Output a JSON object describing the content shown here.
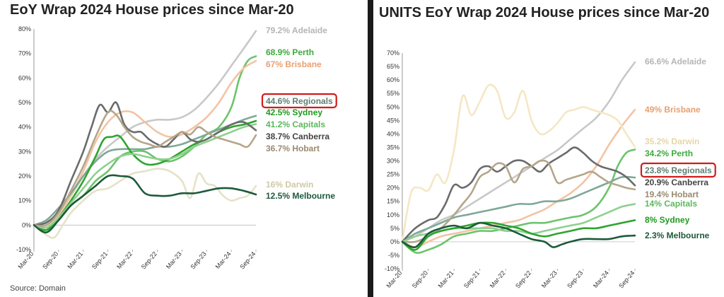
{
  "chart_data": [
    {
      "type": "line",
      "title": "EoY Wrap 2024 House prices since Mar-20",
      "source": "Source: Domain",
      "x_ticks": [
        "Mar-20",
        "Sep-20",
        "Mar-21",
        "Sep-21",
        "Mar-22",
        "Sep-22",
        "Mar-23",
        "Sep-23",
        "Mar-24",
        "Sep-24"
      ],
      "y_ticks": [
        "-10%",
        "0%",
        "10%",
        "20%",
        "30%",
        "40%",
        "50%",
        "60%",
        "70%",
        "80%"
      ],
      "ylim": [
        -10,
        80
      ],
      "xlim": [
        0,
        54
      ],
      "grid": false,
      "legend": "end-labels",
      "series": [
        {
          "name": "Adelaide",
          "label": "79.2% Adelaide",
          "color": "#c8c8c8",
          "label_color": "#b5b5b5",
          "x": [
            0,
            3,
            6,
            9,
            12,
            15,
            18,
            21,
            24,
            27,
            30,
            33,
            36,
            39,
            42,
            45,
            48,
            51,
            54
          ],
          "y": [
            0,
            1,
            5,
            12,
            20,
            27,
            32,
            36,
            40,
            42,
            43,
            43,
            44,
            47,
            52,
            58,
            65,
            72,
            79.2
          ]
        },
        {
          "name": "Perth",
          "label": "68.9% Perth",
          "color": "#6cc46c",
          "label_color": "#3daa3d",
          "x": [
            0,
            3,
            6,
            9,
            12,
            15,
            18,
            21,
            24,
            27,
            30,
            33,
            36,
            39,
            42,
            45,
            48,
            50,
            52,
            54
          ],
          "y": [
            0,
            -2,
            2,
            8,
            12,
            18,
            22,
            28,
            30,
            30,
            27,
            26,
            28,
            32,
            37,
            40,
            48,
            60,
            67,
            68.9
          ]
        },
        {
          "name": "Brisbane",
          "label": "67% Brisbane",
          "color": "#f2c4a4",
          "label_color": "#e8a070",
          "x": [
            0,
            3,
            6,
            9,
            12,
            15,
            18,
            21,
            24,
            27,
            30,
            33,
            36,
            39,
            42,
            45,
            48,
            51,
            54
          ],
          "y": [
            0,
            -1,
            4,
            12,
            22,
            34,
            42,
            46,
            46,
            42,
            38,
            36,
            37,
            40,
            44,
            50,
            58,
            64,
            67
          ]
        },
        {
          "name": "Regionals",
          "label": "44.6% Regionals",
          "color": "#7fa897",
          "label_color": "#5f7f72",
          "x": [
            0,
            3,
            6,
            9,
            12,
            15,
            18,
            21,
            24,
            27,
            30,
            33,
            36,
            39,
            42,
            45,
            48,
            51,
            54
          ],
          "y": [
            0,
            2,
            7,
            13,
            20,
            26,
            30,
            31,
            31,
            31,
            32,
            32,
            33,
            35,
            37,
            39,
            41,
            43,
            44.6
          ]
        },
        {
          "name": "Sydney",
          "label": "42.5% Sydney",
          "color": "#2ea52e",
          "label_color": "#1f9a1f",
          "x": [
            0,
            3,
            6,
            9,
            12,
            15,
            17,
            19,
            21,
            24,
            27,
            30,
            33,
            36,
            39,
            42,
            45,
            48,
            51,
            54
          ],
          "y": [
            0,
            -2,
            3,
            10,
            18,
            28,
            35,
            36,
            36,
            29,
            25,
            25,
            27,
            30,
            33,
            35,
            38,
            40,
            41,
            42.5
          ]
        },
        {
          "name": "Capitals",
          "label": "41.2% Capitals",
          "color": "#8fd08f",
          "label_color": "#5cb85c",
          "x": [
            0,
            3,
            6,
            9,
            12,
            15,
            18,
            21,
            24,
            27,
            30,
            33,
            36,
            39,
            42,
            45,
            48,
            51,
            54
          ],
          "y": [
            0,
            -1,
            3,
            9,
            15,
            21,
            25,
            28,
            29,
            28,
            27,
            27,
            29,
            32,
            34,
            36,
            38,
            40,
            41.2
          ]
        },
        {
          "name": "Canberra",
          "label": "38.7% Canberra",
          "color": "#6b6b6b",
          "label_color": "#444444",
          "x": [
            0,
            3,
            6,
            9,
            12,
            14,
            16,
            18,
            20,
            22,
            24,
            26,
            28,
            30,
            32,
            34,
            36,
            38,
            40,
            42,
            45,
            48,
            51,
            54
          ],
          "y": [
            0,
            1,
            6,
            18,
            30,
            40,
            49,
            46,
            50,
            41,
            38,
            38,
            35,
            33,
            32,
            35,
            38,
            35,
            34,
            35,
            38,
            41,
            42,
            38.7
          ]
        },
        {
          "name": "Hobart",
          "label": "36.7% Hobart",
          "color": "#b5a58a",
          "label_color": "#9a8a70",
          "x": [
            0,
            3,
            6,
            9,
            12,
            15,
            18,
            20,
            22,
            24,
            26,
            28,
            30,
            32,
            34,
            36,
            38,
            40,
            42,
            44,
            46,
            48,
            50,
            52,
            54
          ],
          "y": [
            0,
            0,
            5,
            14,
            24,
            36,
            46,
            45,
            40,
            36,
            34,
            33,
            32,
            34,
            36,
            38,
            37,
            40,
            38,
            36,
            35,
            34,
            33,
            32,
            36.7
          ]
        },
        {
          "name": "Darwin",
          "label": "16% Darwin",
          "color": "#e5e2c8",
          "label_color": "#cfc9a3",
          "x": [
            0,
            3,
            5,
            7,
            9,
            12,
            15,
            18,
            21,
            24,
            27,
            30,
            33,
            36,
            38,
            40,
            42,
            44,
            46,
            48,
            50,
            52,
            54
          ],
          "y": [
            0,
            -4,
            -5,
            0,
            5,
            10,
            14,
            15,
            18,
            21,
            22,
            23,
            22,
            18,
            11,
            21,
            17,
            16,
            12,
            10,
            11,
            12,
            16
          ]
        },
        {
          "name": "Melbourne",
          "label": "12.5% Melbourne",
          "color": "#1c5a3a",
          "label_color": "#1c5a3a",
          "x": [
            0,
            3,
            6,
            9,
            12,
            15,
            18,
            21,
            24,
            27,
            30,
            33,
            36,
            39,
            42,
            45,
            48,
            51,
            54
          ],
          "y": [
            0,
            -3,
            2,
            8,
            12,
            16,
            20,
            20,
            19,
            13,
            12,
            12,
            13,
            13,
            14,
            15,
            15,
            14,
            12.5
          ]
        }
      ]
    },
    {
      "type": "line",
      "title": "UNITS EoY Wrap 2024 House prices since Mar-20",
      "x_ticks": [
        "Mar-20",
        "Sep-20",
        "Mar-21",
        "Sep-21",
        "Mar-22",
        "Sep-22",
        "Mar-23",
        "Sep-23",
        "Mar-24",
        "Sep-24"
      ],
      "y_ticks": [
        "-10%",
        "-5%",
        "0%",
        "5%",
        "10%",
        "15%",
        "20%",
        "25%",
        "30%",
        "35%",
        "40%",
        "45%",
        "50%",
        "55%",
        "60%",
        "65%",
        "70%"
      ],
      "ylim": [
        -10,
        70
      ],
      "xlim": [
        0,
        54
      ],
      "grid": false,
      "legend": "end-labels",
      "series": [
        {
          "name": "Adelaide",
          "label": "66.6% Adelaide",
          "color": "#c8c8c8",
          "label_color": "#b5b5b5",
          "x": [
            0,
            3,
            6,
            9,
            12,
            15,
            18,
            21,
            24,
            27,
            30,
            33,
            36,
            39,
            42,
            45,
            48,
            51,
            54
          ],
          "y": [
            0,
            2,
            5,
            8,
            10,
            13,
            16,
            19,
            22,
            25,
            28,
            31,
            34,
            38,
            42,
            46,
            52,
            60,
            66.6
          ]
        },
        {
          "name": "Brisbane",
          "label": "49% Brisbane",
          "color": "#f2c4a4",
          "label_color": "#e8a070",
          "x": [
            0,
            3,
            6,
            9,
            12,
            15,
            18,
            21,
            24,
            27,
            30,
            33,
            36,
            39,
            42,
            45,
            48,
            51,
            54
          ],
          "y": [
            0,
            -2,
            0,
            2,
            3,
            4,
            5,
            6,
            7,
            8,
            10,
            12,
            15,
            18,
            22,
            28,
            36,
            43,
            49
          ]
        },
        {
          "name": "Darwin",
          "label": "35.2% Darwin",
          "color": "#f5e7c5",
          "label_color": "#e6d6a8",
          "x": [
            0,
            2,
            4,
            6,
            8,
            10,
            12,
            14,
            16,
            18,
            20,
            22,
            24,
            26,
            28,
            30,
            32,
            34,
            36,
            38,
            40,
            42,
            44,
            46,
            48,
            50,
            52,
            54
          ],
          "y": [
            0,
            18,
            20,
            19,
            25,
            22,
            34,
            54,
            47,
            52,
            58,
            56,
            46,
            48,
            56,
            45,
            40,
            41,
            44,
            48,
            49,
            50,
            49,
            48,
            47,
            45,
            40,
            35.2
          ]
        },
        {
          "name": "Perth",
          "label": "34.2% Perth",
          "color": "#6cc46c",
          "label_color": "#3daa3d",
          "x": [
            0,
            3,
            6,
            9,
            12,
            15,
            18,
            21,
            24,
            27,
            30,
            33,
            36,
            39,
            42,
            45,
            48,
            50,
            52,
            54
          ],
          "y": [
            0,
            -4,
            -3,
            -1,
            2,
            3,
            4,
            4,
            5,
            6,
            7,
            7,
            8,
            9,
            10,
            13,
            20,
            28,
            33,
            34.2
          ]
        },
        {
          "name": "Regionals",
          "label": "23.8% Regionals",
          "color": "#7fa897",
          "label_color": "#5f7f72",
          "x": [
            0,
            3,
            6,
            9,
            12,
            15,
            18,
            21,
            24,
            27,
            30,
            33,
            36,
            39,
            42,
            45,
            48,
            51,
            54
          ],
          "y": [
            0,
            3,
            5,
            7,
            9,
            10,
            11,
            12,
            13,
            14,
            14,
            15,
            15,
            16,
            18,
            20,
            22,
            24,
            23.8
          ]
        },
        {
          "name": "Canberra",
          "label": "20.9% Canberra",
          "color": "#6b6b6b",
          "label_color": "#444444",
          "x": [
            0,
            3,
            6,
            8,
            10,
            12,
            14,
            16,
            18,
            20,
            22,
            24,
            26,
            28,
            30,
            32,
            34,
            36,
            38,
            40,
            42,
            44,
            46,
            48,
            50,
            52,
            54
          ],
          "y": [
            0,
            5,
            8,
            9,
            14,
            21,
            20,
            22,
            27,
            28,
            26,
            28,
            30,
            30,
            28,
            26,
            29,
            31,
            33,
            35,
            33,
            30,
            28,
            27,
            26,
            24,
            20.9
          ]
        },
        {
          "name": "Hobart",
          "label": "19.4% Hobart",
          "color": "#b5a58a",
          "label_color": "#9a8a70",
          "x": [
            0,
            3,
            6,
            9,
            12,
            14,
            16,
            18,
            20,
            22,
            24,
            26,
            28,
            30,
            32,
            34,
            36,
            38,
            40,
            42,
            44,
            46,
            48,
            50,
            52,
            54
          ],
          "y": [
            0,
            0,
            2,
            5,
            10,
            14,
            18,
            24,
            26,
            29,
            28,
            22,
            27,
            28,
            30,
            29,
            22,
            23,
            24,
            25,
            26,
            24,
            22,
            21,
            20,
            19.4
          ]
        },
        {
          "name": "Capitals",
          "label": "14% Capitals",
          "color": "#8fd08f",
          "label_color": "#5cb85c",
          "x": [
            0,
            3,
            6,
            9,
            12,
            15,
            18,
            21,
            24,
            27,
            30,
            33,
            36,
            39,
            42,
            45,
            48,
            51,
            54
          ],
          "y": [
            0,
            2,
            3,
            4,
            5,
            5,
            5,
            5,
            4,
            4,
            3,
            4,
            5,
            6,
            7,
            9,
            11,
            13,
            14
          ]
        },
        {
          "name": "Sydney",
          "label": "8% Sydney",
          "color": "#2ea52e",
          "label_color": "#1f9a1f",
          "x": [
            0,
            3,
            6,
            9,
            12,
            15,
            18,
            21,
            24,
            27,
            30,
            33,
            36,
            39,
            42,
            45,
            48,
            51,
            54
          ],
          "y": [
            0,
            -3,
            2,
            4,
            5,
            6,
            7,
            7,
            6,
            5,
            3,
            2,
            3,
            4,
            5,
            5,
            6,
            7,
            8
          ]
        },
        {
          "name": "Melbourne",
          "label": "2.3% Melbourne",
          "color": "#1c5a3a",
          "label_color": "#1c5a3a",
          "x": [
            0,
            3,
            6,
            9,
            12,
            15,
            18,
            21,
            24,
            27,
            30,
            33,
            35,
            37,
            39,
            42,
            45,
            48,
            51,
            54
          ],
          "y": [
            0,
            -2,
            3,
            5,
            6,
            5,
            7,
            6,
            5,
            3,
            1,
            0,
            -2,
            -1,
            0,
            1,
            1,
            1,
            2,
            2.3
          ]
        }
      ]
    }
  ]
}
